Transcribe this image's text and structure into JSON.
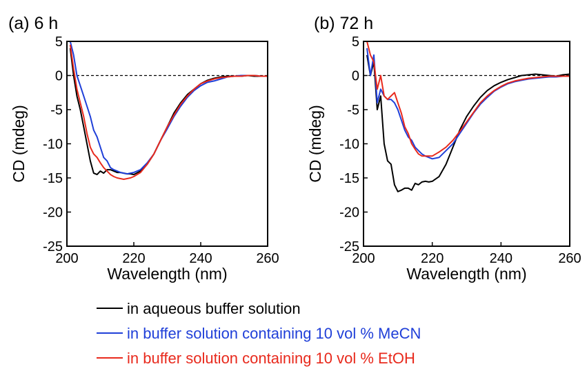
{
  "chart_data": [
    {
      "type": "line",
      "title": "(a) 6 h",
      "xlabel": "Wavelength (nm)",
      "ylabel": "CD (mdeg)",
      "xlim": [
        200,
        260
      ],
      "ylim": [
        -25,
        5
      ],
      "xticks": [
        "200",
        "220",
        "240",
        "260"
      ],
      "yticks": [
        "5",
        "0",
        "-5",
        "-10",
        "-15",
        "-20",
        "-25"
      ],
      "reference_line_y": 0,
      "series": [
        {
          "name": "in aqueous buffer solution",
          "color": "#000000",
          "x": [
            201,
            202,
            203,
            204,
            205,
            206,
            207,
            208,
            209,
            210,
            211,
            212,
            213,
            214,
            215,
            216,
            217,
            218,
            219,
            220,
            222,
            224,
            226,
            228,
            230,
            232,
            234,
            236,
            238,
            240,
            242,
            244,
            246,
            248,
            250,
            252,
            254,
            256,
            258,
            260
          ],
          "y": [
            4,
            0,
            -3,
            -5,
            -7.5,
            -10,
            -12.5,
            -14.3,
            -14.5,
            -14,
            -14.3,
            -13.8,
            -13.8,
            -14,
            -14.2,
            -14.2,
            -14.3,
            -14.4,
            -14.4,
            -14.5,
            -14,
            -13,
            -11.5,
            -9.5,
            -7.5,
            -5.5,
            -4,
            -2.8,
            -2,
            -1.2,
            -0.7,
            -0.4,
            -0.2,
            -0.1,
            -0.1,
            -0.1,
            0,
            -0.1,
            -0.1,
            -0.1
          ]
        },
        {
          "name": "in buffer solution containing 10 vol % MeCN",
          "color": "#1f3fd8",
          "x": [
            201,
            202,
            203,
            204,
            205,
            206,
            207,
            208,
            209,
            210,
            211,
            212,
            213,
            214,
            215,
            216,
            217,
            218,
            219,
            220,
            222,
            224,
            226,
            228,
            230,
            232,
            234,
            236,
            238,
            240,
            242,
            244,
            246,
            248,
            250,
            252,
            254,
            256,
            258,
            260
          ],
          "y": [
            5,
            3,
            0,
            -1.5,
            -3,
            -4.5,
            -6,
            -8,
            -9,
            -10.5,
            -12,
            -12.5,
            -13.5,
            -13.8,
            -14,
            -14.2,
            -14.3,
            -14.4,
            -14.3,
            -14.2,
            -13.8,
            -12.8,
            -11.5,
            -9.5,
            -7.8,
            -6,
            -4.5,
            -3.2,
            -2.2,
            -1.5,
            -1,
            -0.8,
            -0.5,
            -0.2,
            -0.1,
            0,
            0,
            0,
            -0.1,
            -0.1
          ]
        },
        {
          "name": "in buffer solution containing 10 vol % EtOH",
          "color": "#e8291c",
          "x": [
            201,
            202,
            203,
            204,
            205,
            206,
            207,
            208,
            209,
            210,
            211,
            212,
            213,
            214,
            215,
            216,
            217,
            218,
            219,
            220,
            222,
            224,
            226,
            228,
            230,
            232,
            234,
            236,
            238,
            240,
            242,
            244,
            246,
            248,
            250,
            252,
            254,
            256,
            258,
            260
          ],
          "y": [
            4.5,
            1,
            -2,
            -4,
            -6,
            -8.5,
            -10.5,
            -11.5,
            -12,
            -12.8,
            -13.5,
            -14,
            -14.5,
            -14.8,
            -15,
            -15.1,
            -15.2,
            -15.1,
            -15,
            -14.8,
            -14.2,
            -13,
            -11.5,
            -9.5,
            -7.5,
            -5.8,
            -4.2,
            -3,
            -2,
            -1.2,
            -0.8,
            -0.5,
            -0.3,
            -0.2,
            -0.1,
            -0.1,
            0,
            0,
            -0.1,
            -0.1
          ]
        }
      ]
    },
    {
      "type": "line",
      "title": "(b) 72 h",
      "xlabel": "Wavelength (nm)",
      "ylabel": "CD (mdeg)",
      "xlim": [
        200,
        260
      ],
      "ylim": [
        -25,
        5
      ],
      "xticks": [
        "200",
        "220",
        "240",
        "260"
      ],
      "yticks": [
        "5",
        "0",
        "-5",
        "-10",
        "-15",
        "-20",
        "-25"
      ],
      "reference_line_y": 0,
      "series": [
        {
          "name": "in aqueous buffer solution",
          "color": "#000000",
          "x": [
            201,
            202,
            203,
            204,
            205,
            206,
            207,
            208,
            209,
            210,
            211,
            212,
            213,
            214,
            215,
            216,
            217,
            218,
            219,
            220,
            222,
            224,
            226,
            228,
            230,
            232,
            234,
            236,
            238,
            240,
            242,
            244,
            246,
            248,
            250,
            252,
            254,
            256,
            258,
            260
          ],
          "y": [
            3,
            0,
            2,
            -5,
            -3,
            -10,
            -12.5,
            -13,
            -16,
            -17,
            -16.8,
            -16.5,
            -16.5,
            -16.8,
            -15.8,
            -16,
            -15.6,
            -15.5,
            -15.6,
            -15.5,
            -14.8,
            -13,
            -10.5,
            -8,
            -6,
            -4.5,
            -3.2,
            -2.2,
            -1.5,
            -1,
            -0.6,
            -0.3,
            0,
            0.1,
            0.2,
            0.1,
            0,
            -0.1,
            0.1,
            0.2
          ]
        },
        {
          "name": "in buffer solution containing 10 vol % MeCN",
          "color": "#1f3fd8",
          "x": [
            201,
            202,
            203,
            204,
            205,
            206,
            207,
            208,
            209,
            210,
            211,
            212,
            213,
            214,
            215,
            216,
            217,
            218,
            219,
            220,
            222,
            224,
            226,
            228,
            230,
            232,
            234,
            236,
            238,
            240,
            242,
            244,
            246,
            248,
            250,
            252,
            254,
            256,
            258,
            260
          ],
          "y": [
            4,
            0,
            3,
            -4,
            -2,
            -3,
            -3.5,
            -3.5,
            -4,
            -5,
            -6.5,
            -8,
            -9,
            -9.5,
            -10.5,
            -11,
            -11.5,
            -11.8,
            -12,
            -12.2,
            -12,
            -11,
            -10,
            -8.5,
            -7,
            -5.5,
            -4.2,
            -3.2,
            -2.3,
            -1.7,
            -1.2,
            -0.9,
            -0.7,
            -0.5,
            -0.4,
            -0.3,
            -0.2,
            -0.2,
            -0.1,
            -0.1
          ]
        },
        {
          "name": "in buffer solution containing 10 vol % EtOH",
          "color": "#e8291c",
          "x": [
            201,
            202,
            203,
            204,
            205,
            206,
            207,
            208,
            209,
            210,
            211,
            212,
            213,
            214,
            215,
            216,
            217,
            218,
            219,
            220,
            222,
            224,
            226,
            228,
            230,
            232,
            234,
            236,
            238,
            240,
            242,
            244,
            246,
            248,
            250,
            252,
            254,
            256,
            258,
            260
          ],
          "y": [
            5,
            3,
            2,
            -2,
            0,
            -3,
            -3.5,
            -3,
            -2.5,
            -4,
            -5.5,
            -7.5,
            -8.5,
            -10,
            -10.8,
            -11.5,
            -11.8,
            -11.8,
            -11.8,
            -11.8,
            -11.2,
            -10.5,
            -9.5,
            -8.2,
            -6.8,
            -5.4,
            -4,
            -3,
            -2.2,
            -1.6,
            -1.1,
            -0.8,
            -0.6,
            -0.4,
            -0.3,
            -0.2,
            -0.1,
            -0.1,
            -0.1,
            -0.1
          ]
        }
      ]
    }
  ],
  "legend": [
    {
      "label": "in aqueous buffer solution",
      "color": "#000000"
    },
    {
      "label": "in buffer solution containing 10 vol % MeCN",
      "color": "#1f3fd8"
    },
    {
      "label": "in buffer solution containing 10 vol % EtOH",
      "color": "#e8291c"
    }
  ]
}
